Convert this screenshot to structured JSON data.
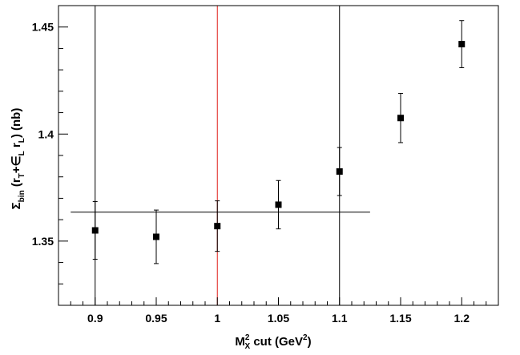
{
  "chart_data": {
    "type": "scatter",
    "title": "",
    "xlabel": {
      "base": "M",
      "sup": "2",
      "sub": "X",
      "rest": " cut (GeV",
      "unit_sup": "2",
      "close": ")"
    },
    "ylabel": {
      "sum": "Σ",
      "sum_sub": "bin",
      "open": " (r",
      "rT_sub": "T",
      "plus": "+∈",
      "eps_sub": "L",
      "r": " r",
      "rL_sub": "L",
      "tail": ") (nb)"
    },
    "xlim": [
      0.87,
      1.23
    ],
    "ylim": [
      1.32,
      1.46
    ],
    "xticks": [
      "0.9",
      "0.95",
      "1",
      "1.05",
      "1.1",
      "1.15",
      "1.2"
    ],
    "yticks": [
      "1.35",
      "1.4",
      "1.45"
    ],
    "points": [
      {
        "x": 0.9,
        "y": 1.355,
        "err": 0.0135,
        "color": "#000000"
      },
      {
        "x": 0.95,
        "y": 1.352,
        "err": 0.0125,
        "color": "#000000"
      },
      {
        "x": 1.0,
        "y": 1.357,
        "err": 0.0118,
        "color": "#000000"
      },
      {
        "x": 1.05,
        "y": 1.367,
        "err": 0.0113,
        "color": "#000000"
      },
      {
        "x": 1.1,
        "y": 1.3825,
        "err": 0.0112,
        "color": "#000000"
      },
      {
        "x": 1.15,
        "y": 1.4075,
        "err": 0.0115,
        "color": "#000000"
      },
      {
        "x": 1.2,
        "y": 1.442,
        "err": 0.011,
        "color": "#000000"
      }
    ],
    "vertical_lines": [
      {
        "x": 0.9,
        "color": "#000000"
      },
      {
        "x": 1.0,
        "color": "#e0201b"
      },
      {
        "x": 1.1,
        "color": "#000000"
      }
    ],
    "horizontal_line": {
      "y": 1.3635,
      "x_from": 0.88,
      "x_to": 1.125,
      "color": "#000000"
    },
    "grid": false,
    "legend": "none"
  }
}
